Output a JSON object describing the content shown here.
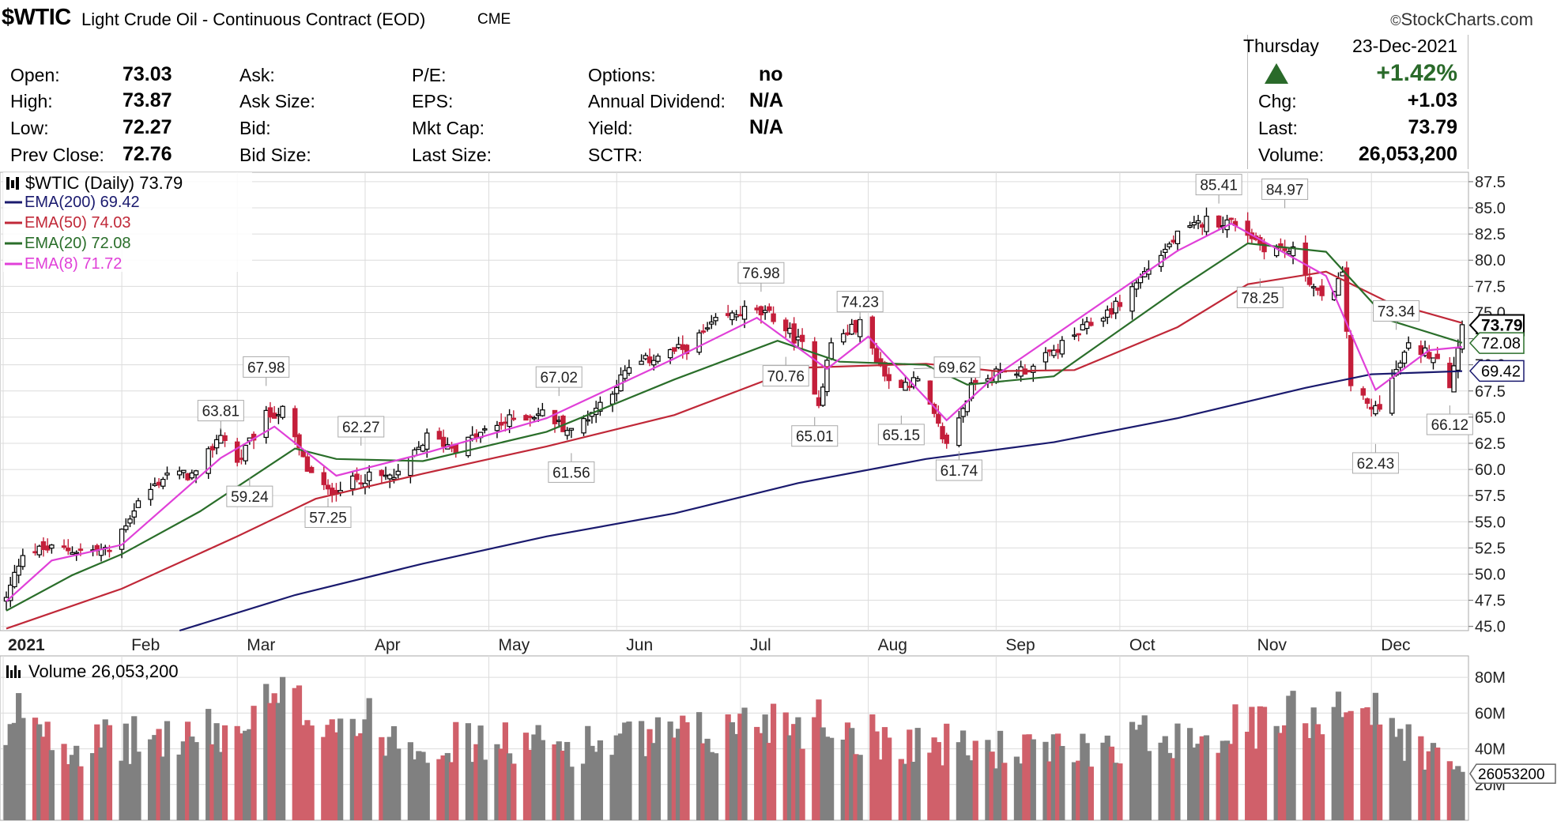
{
  "header": {
    "symbol": "$WTIC",
    "name": "Light Crude Oil - Continuous Contract (EOD)",
    "exchange": "CME",
    "brand": "StockCharts.com",
    "brand_mark": "©"
  },
  "quote": {
    "open_label": "Open:",
    "open": "73.03",
    "high_label": "High:",
    "high": "73.87",
    "low_label": "Low:",
    "low": "72.27",
    "prev_close_label": "Prev Close:",
    "prev_close": "72.76",
    "ask_label": "Ask:",
    "ask_size_label": "Ask Size:",
    "bid_label": "Bid:",
    "bid_size_label": "Bid Size:",
    "pe_label": "P/E:",
    "eps_label": "EPS:",
    "mkt_cap_label": "Mkt Cap:",
    "last_size_label": "Last Size:",
    "options_label": "Options:",
    "options": "no",
    "dividend_label": "Annual Dividend:",
    "dividend": "N/A",
    "yield_label": "Yield:",
    "yield": "N/A",
    "sctr_label": "SCTR:",
    "day": "Thursday",
    "date": "23-Dec-2021",
    "pct_change": "+1.42%",
    "chg_label": "Chg:",
    "chg": "+1.03",
    "last_label": "Last:",
    "last": "73.79",
    "volume_label": "Volume:",
    "volume": "26,053,200"
  },
  "colors": {
    "ema200": "#1a1a6e",
    "ema50": "#c02838",
    "ema20": "#2a6e2a",
    "ema8": "#e040d8",
    "up_candle": "#000000",
    "down_candle": "#c41e3a",
    "vol_up": "#808080",
    "vol_down": "#d0606a",
    "grid": "#dcdcdc",
    "up_arrow": "#2a6a2a"
  },
  "chart_data": [
    {
      "type": "candlestick",
      "title": "$WTIC (Daily) 73.79",
      "legend": [
        {
          "name": "EMA(200) 69.42",
          "color": "#1a1a6e"
        },
        {
          "name": "EMA(50) 74.03",
          "color": "#c02838"
        },
        {
          "name": "EMA(20) 72.08",
          "color": "#2a6e2a"
        },
        {
          "name": "EMA(8) 71.72",
          "color": "#e040d8"
        }
      ],
      "x_labels": [
        "2021",
        "Feb",
        "Mar",
        "Apr",
        "May",
        "Jun",
        "Jul",
        "Aug",
        "Sep",
        "Oct",
        "Nov",
        "Dec"
      ],
      "y_ticks": [
        "87.5",
        "85.0",
        "82.5",
        "80.0",
        "77.5",
        "75.0",
        "72.5",
        "70.0",
        "67.5",
        "65.0",
        "62.5",
        "60.0",
        "57.5",
        "55.0",
        "52.5",
        "50.0",
        "47.5",
        "45.0"
      ],
      "ylim": [
        44.6,
        88.4
      ],
      "price_series": [
        {
          "date": "2021-01-04",
          "value": 47.6
        },
        {
          "date": "2021-01-08",
          "value": 52.2
        },
        {
          "date": "2021-01-15",
          "value": 52.4
        },
        {
          "date": "2021-01-22",
          "value": 52.3
        },
        {
          "date": "2021-01-29",
          "value": 52.2
        },
        {
          "date": "2021-02-05",
          "value": 56.9
        },
        {
          "date": "2021-02-12",
          "value": 59.6
        },
        {
          "date": "2021-02-19",
          "value": 59.4
        },
        {
          "date": "2021-02-25",
          "value": 63.5
        },
        {
          "date": "2021-03-01",
          "value": 60.6
        },
        {
          "date": "2021-03-08",
          "value": 65.1
        },
        {
          "date": "2021-03-12",
          "value": 65.6
        },
        {
          "date": "2021-03-18",
          "value": 60.0
        },
        {
          "date": "2021-03-23",
          "value": 57.8
        },
        {
          "date": "2021-03-31",
          "value": 59.2
        },
        {
          "date": "2021-04-09",
          "value": 59.3
        },
        {
          "date": "2021-04-16",
          "value": 63.1
        },
        {
          "date": "2021-04-23",
          "value": 62.1
        },
        {
          "date": "2021-04-30",
          "value": 63.6
        },
        {
          "date": "2021-05-07",
          "value": 64.9
        },
        {
          "date": "2021-05-14",
          "value": 65.4
        },
        {
          "date": "2021-05-21",
          "value": 63.6
        },
        {
          "date": "2021-05-28",
          "value": 66.3
        },
        {
          "date": "2021-06-04",
          "value": 69.6
        },
        {
          "date": "2021-06-11",
          "value": 70.9
        },
        {
          "date": "2021-06-18",
          "value": 71.6
        },
        {
          "date": "2021-06-25",
          "value": 74.0
        },
        {
          "date": "2021-07-02",
          "value": 75.2
        },
        {
          "date": "2021-07-09",
          "value": 74.6
        },
        {
          "date": "2021-07-16",
          "value": 71.8
        },
        {
          "date": "2021-07-20",
          "value": 66.4
        },
        {
          "date": "2021-07-23",
          "value": 72.1
        },
        {
          "date": "2021-07-30",
          "value": 73.9
        },
        {
          "date": "2021-08-06",
          "value": 68.3
        },
        {
          "date": "2021-08-13",
          "value": 68.4
        },
        {
          "date": "2021-08-20",
          "value": 62.3
        },
        {
          "date": "2021-08-27",
          "value": 68.7
        },
        {
          "date": "2021-09-03",
          "value": 69.3
        },
        {
          "date": "2021-09-10",
          "value": 69.7
        },
        {
          "date": "2021-09-17",
          "value": 71.9
        },
        {
          "date": "2021-09-24",
          "value": 73.9
        },
        {
          "date": "2021-10-01",
          "value": 75.9
        },
        {
          "date": "2021-10-08",
          "value": 79.3
        },
        {
          "date": "2021-10-15",
          "value": 82.3
        },
        {
          "date": "2021-10-22",
          "value": 83.8
        },
        {
          "date": "2021-10-29",
          "value": 83.6
        },
        {
          "date": "2021-11-05",
          "value": 81.3
        },
        {
          "date": "2021-11-12",
          "value": 80.8
        },
        {
          "date": "2021-11-19",
          "value": 76.1
        },
        {
          "date": "2021-11-24",
          "value": 78.4
        },
        {
          "date": "2021-11-26",
          "value": 68.2
        },
        {
          "date": "2021-12-01",
          "value": 65.6
        },
        {
          "date": "2021-12-03",
          "value": 66.3
        },
        {
          "date": "2021-12-10",
          "value": 71.7
        },
        {
          "date": "2021-12-17",
          "value": 70.9
        },
        {
          "date": "2021-12-20",
          "value": 68.2
        },
        {
          "date": "2021-12-23",
          "value": 73.8
        }
      ],
      "ema200": [
        {
          "date": "2021-02-15",
          "value": 44.6
        },
        {
          "date": "2021-03-15",
          "value": 48.0
        },
        {
          "date": "2021-04-15",
          "value": 51.0
        },
        {
          "date": "2021-05-15",
          "value": 53.6
        },
        {
          "date": "2021-06-15",
          "value": 55.8
        },
        {
          "date": "2021-07-15",
          "value": 58.7
        },
        {
          "date": "2021-08-15",
          "value": 61.0
        },
        {
          "date": "2021-09-15",
          "value": 62.6
        },
        {
          "date": "2021-10-15",
          "value": 64.9
        },
        {
          "date": "2021-11-15",
          "value": 67.8
        },
        {
          "date": "2021-12-01",
          "value": 69.1
        },
        {
          "date": "2021-12-23",
          "value": 69.4
        }
      ],
      "ema50": [
        {
          "date": "2021-01-04",
          "value": 44.8
        },
        {
          "date": "2021-02-01",
          "value": 48.6
        },
        {
          "date": "2021-03-01",
          "value": 53.6
        },
        {
          "date": "2021-03-20",
          "value": 57.2
        },
        {
          "date": "2021-04-15",
          "value": 59.6
        },
        {
          "date": "2021-05-15",
          "value": 62.2
        },
        {
          "date": "2021-06-15",
          "value": 65.2
        },
        {
          "date": "2021-07-15",
          "value": 69.7
        },
        {
          "date": "2021-08-15",
          "value": 70.1
        },
        {
          "date": "2021-09-01",
          "value": 69.4
        },
        {
          "date": "2021-09-20",
          "value": 69.5
        },
        {
          "date": "2021-10-15",
          "value": 73.6
        },
        {
          "date": "2021-11-01",
          "value": 77.7
        },
        {
          "date": "2021-11-20",
          "value": 78.9
        },
        {
          "date": "2021-12-05",
          "value": 76.0
        },
        {
          "date": "2021-12-23",
          "value": 74.0
        }
      ],
      "ema20": [
        {
          "date": "2021-01-04",
          "value": 46.5
        },
        {
          "date": "2021-01-20",
          "value": 49.9
        },
        {
          "date": "2021-02-01",
          "value": 51.9
        },
        {
          "date": "2021-02-20",
          "value": 56.0
        },
        {
          "date": "2021-03-15",
          "value": 62.0
        },
        {
          "date": "2021-03-25",
          "value": 61.0
        },
        {
          "date": "2021-04-15",
          "value": 60.8
        },
        {
          "date": "2021-05-15",
          "value": 63.6
        },
        {
          "date": "2021-06-15",
          "value": 68.6
        },
        {
          "date": "2021-07-10",
          "value": 72.3
        },
        {
          "date": "2021-07-25",
          "value": 70.3
        },
        {
          "date": "2021-08-15",
          "value": 70.0
        },
        {
          "date": "2021-08-25",
          "value": 68.1
        },
        {
          "date": "2021-09-15",
          "value": 68.9
        },
        {
          "date": "2021-10-15",
          "value": 77.2
        },
        {
          "date": "2021-11-01",
          "value": 81.6
        },
        {
          "date": "2021-11-20",
          "value": 80.8
        },
        {
          "date": "2021-12-05",
          "value": 74.3
        },
        {
          "date": "2021-12-23",
          "value": 72.1
        }
      ],
      "ema8": [
        {
          "date": "2021-01-04",
          "value": 47.4
        },
        {
          "date": "2021-01-15",
          "value": 51.3
        },
        {
          "date": "2021-02-01",
          "value": 52.8
        },
        {
          "date": "2021-02-25",
          "value": 61.1
        },
        {
          "date": "2021-03-10",
          "value": 64.1
        },
        {
          "date": "2021-03-25",
          "value": 59.4
        },
        {
          "date": "2021-04-15",
          "value": 61.5
        },
        {
          "date": "2021-05-15",
          "value": 64.9
        },
        {
          "date": "2021-06-15",
          "value": 70.6
        },
        {
          "date": "2021-07-05",
          "value": 74.5
        },
        {
          "date": "2021-07-22",
          "value": 69.6
        },
        {
          "date": "2021-08-01",
          "value": 72.7
        },
        {
          "date": "2021-08-20",
          "value": 64.7
        },
        {
          "date": "2021-09-01",
          "value": 69.0
        },
        {
          "date": "2021-10-15",
          "value": 80.9
        },
        {
          "date": "2021-10-28",
          "value": 83.5
        },
        {
          "date": "2021-11-20",
          "value": 78.5
        },
        {
          "date": "2021-12-02",
          "value": 67.6
        },
        {
          "date": "2021-12-15",
          "value": 71.4
        },
        {
          "date": "2021-12-23",
          "value": 71.7
        }
      ],
      "annotations": [
        {
          "label": "67.98",
          "date": "2021-03-08",
          "value": 67.98,
          "pos": "above"
        },
        {
          "label": "63.81",
          "date": "2021-02-25",
          "value": 63.81,
          "pos": "above"
        },
        {
          "label": "62.27",
          "date": "2021-03-31",
          "value": 62.27,
          "pos": "above"
        },
        {
          "label": "59.24",
          "date": "2021-03-04",
          "value": 59.24,
          "pos": "below"
        },
        {
          "label": "57.25",
          "date": "2021-03-23",
          "value": 57.25,
          "pos": "below"
        },
        {
          "label": "67.02",
          "date": "2021-05-18",
          "value": 67.02,
          "pos": "above"
        },
        {
          "label": "61.56",
          "date": "2021-05-21",
          "value": 61.56,
          "pos": "below"
        },
        {
          "label": "76.98",
          "date": "2021-07-06",
          "value": 76.98,
          "pos": "above"
        },
        {
          "label": "70.76",
          "date": "2021-07-12",
          "value": 70.76,
          "pos": "below"
        },
        {
          "label": "65.01",
          "date": "2021-07-19",
          "value": 65.01,
          "pos": "below"
        },
        {
          "label": "74.23",
          "date": "2021-07-30",
          "value": 74.23,
          "pos": "above"
        },
        {
          "label": "69.62",
          "date": "2021-08-12",
          "value": 69.62,
          "pos": "right"
        },
        {
          "label": "65.15",
          "date": "2021-08-09",
          "value": 65.15,
          "pos": "below"
        },
        {
          "label": "61.74",
          "date": "2021-08-23",
          "value": 61.74,
          "pos": "below"
        },
        {
          "label": "85.41",
          "date": "2021-10-25",
          "value": 85.41,
          "pos": "above"
        },
        {
          "label": "84.97",
          "date": "2021-11-10",
          "value": 84.97,
          "pos": "above"
        },
        {
          "label": "78.25",
          "date": "2021-11-04",
          "value": 78.25,
          "pos": "below"
        },
        {
          "label": "73.34",
          "date": "2021-12-07",
          "value": 73.34,
          "pos": "above"
        },
        {
          "label": "62.43",
          "date": "2021-12-02",
          "value": 62.43,
          "pos": "below"
        },
        {
          "label": "66.12",
          "date": "2021-12-20",
          "value": 66.12,
          "pos": "below"
        }
      ],
      "price_tags": [
        {
          "label": "73.79",
          "value": 73.79,
          "style": "last"
        },
        {
          "label": "72.08",
          "value": 72.08,
          "style": "ema20"
        },
        {
          "label": "69.42",
          "value": 69.42,
          "style": "ema200"
        }
      ],
      "grid": true
    },
    {
      "type": "bar",
      "title": "Volume 26,053,200",
      "y_ticks": [
        "80M",
        "60M",
        "40M",
        "20M"
      ],
      "ylim": [
        0,
        92000000
      ],
      "last_value_tag": "26053200",
      "volume_profile": [
        {
          "date": "2021-01-04",
          "value": 38000000
        },
        {
          "date": "2021-01-08",
          "value": 66000000
        },
        {
          "date": "2021-01-20",
          "value": 42000000
        },
        {
          "date": "2021-02-10",
          "value": 46000000
        },
        {
          "date": "2021-03-01",
          "value": 50000000
        },
        {
          "date": "2021-03-10",
          "value": 65000000
        },
        {
          "date": "2021-03-20",
          "value": 62000000
        },
        {
          "date": "2021-04-15",
          "value": 44000000
        },
        {
          "date": "2021-05-20",
          "value": 42000000
        },
        {
          "date": "2021-06-25",
          "value": 48000000
        },
        {
          "date": "2021-07-06",
          "value": 58000000
        },
        {
          "date": "2021-07-20",
          "value": 56000000
        },
        {
          "date": "2021-08-05",
          "value": 46000000
        },
        {
          "date": "2021-08-20",
          "value": 42000000
        },
        {
          "date": "2021-09-15",
          "value": 38000000
        },
        {
          "date": "2021-10-15",
          "value": 50000000
        },
        {
          "date": "2021-11-05",
          "value": 52000000
        },
        {
          "date": "2021-11-26",
          "value": 70000000
        },
        {
          "date": "2021-12-05",
          "value": 52000000
        },
        {
          "date": "2021-12-23",
          "value": 26000000
        }
      ]
    }
  ]
}
